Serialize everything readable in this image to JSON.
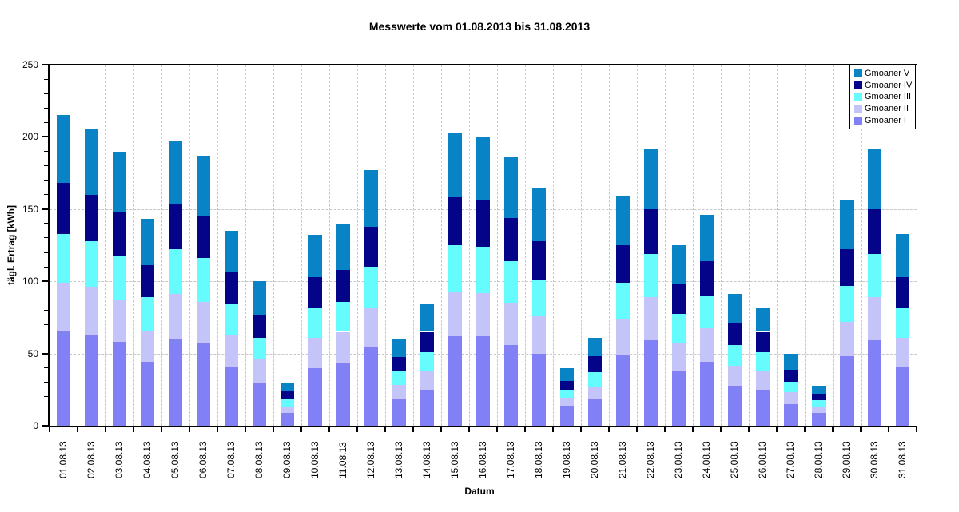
{
  "title": "Messwerte vom 01.08.2013 bis 31.08.2013",
  "colors": {
    "background": "#ffffff",
    "axis": "#000000",
    "grid": "#c8c8c8",
    "gmoaner_1": "#8280f5",
    "gmoaner_2": "#c5c4f9",
    "gmoaner_3": "#66fbfc",
    "gmoaner_4": "#040489",
    "gmoaner_5": "#0883c5"
  },
  "legend": {
    "position": "top-right",
    "items": [
      {
        "label": "Gmoaner V",
        "color": "#0883c5"
      },
      {
        "label": "Gmoaner IV",
        "color": "#040489"
      },
      {
        "label": "Gmoaner III",
        "color": "#66fbfc"
      },
      {
        "label": "Gmoaner II",
        "color": "#c5c4f9"
      },
      {
        "label": "Gmoaner I",
        "color": "#8280f5"
      }
    ]
  },
  "chart_data": {
    "type": "bar",
    "stacked": true,
    "title": "Messwerte vom 01.08.2013 bis 31.08.2013",
    "xlabel": "Datum",
    "ylabel": "tägl. Ertrag [kWh]",
    "ylim": [
      0,
      250
    ],
    "ytick_step": 50,
    "yminor_step": 10,
    "y_tick_labels": [
      "0",
      "50",
      "100",
      "150",
      "200",
      "250"
    ],
    "grid": "dashed",
    "legend_position": "top-right inside plot",
    "categories": [
      "01.08.13",
      "02.08.13",
      "03.08.13",
      "04.08.13",
      "05.08.13",
      "06.08.13",
      "07.08.13",
      "08.08.13",
      "09.08.13",
      "10.08.13",
      "11.08.13",
      "12.08.13",
      "13.08.13",
      "14.08.13",
      "15.08.13",
      "16.08.13",
      "17.08.13",
      "18.08.13",
      "19.08.13",
      "20.08.13",
      "21.08.13",
      "22.08.13",
      "23.08.13",
      "24.08.13",
      "25.08.13",
      "26.08.13",
      "27.08.13",
      "28.08.13",
      "29.08.13",
      "30.08.13",
      "31.08.13"
    ],
    "series": [
      {
        "name": "Gmoaner I",
        "color": "#8280f5",
        "values": [
          65,
          63,
          58,
          44,
          60,
          57,
          41,
          30,
          9,
          40,
          43,
          54,
          19,
          25,
          62,
          62,
          56,
          50,
          14,
          18.5,
          49,
          59,
          38,
          44.5,
          27.5,
          25,
          15,
          9,
          48,
          59,
          41
        ]
      },
      {
        "name": "Gmoaner II",
        "color": "#c5c4f9",
        "values": [
          34,
          33,
          29,
          22,
          31,
          29,
          22,
          16,
          4.5,
          21,
          22,
          28,
          9,
          13,
          31,
          30,
          29,
          26,
          5.5,
          8.5,
          25,
          30,
          19.5,
          23,
          14,
          13,
          8,
          4,
          24,
          30,
          20
        ]
      },
      {
        "name": "Gmoaner III",
        "color": "#66fbfc",
        "values": [
          34,
          32,
          30,
          23,
          31,
          30,
          21,
          15,
          5,
          21,
          21,
          28,
          9.5,
          13,
          32,
          32,
          29,
          25,
          5.5,
          10,
          25,
          30,
          20,
          22.5,
          14.5,
          13,
          7.5,
          4.5,
          25,
          30,
          21
        ]
      },
      {
        "name": "Gmoaner IV",
        "color": "#040489",
        "values": [
          35,
          32,
          31,
          22,
          32,
          29,
          22,
          16,
          5.5,
          21,
          22,
          28,
          10,
          14,
          33,
          32,
          30,
          27,
          6,
          11,
          26,
          31,
          20.5,
          24,
          15,
          14,
          8,
          4.5,
          25,
          31,
          21
        ]
      },
      {
        "name": "Gmoaner V",
        "color": "#0883c5",
        "values": [
          47,
          45,
          42,
          32,
          43,
          42,
          29,
          23,
          6,
          29,
          32,
          39,
          13,
          19,
          45,
          44,
          42,
          37,
          9,
          13,
          34,
          42,
          27,
          32,
          20,
          17,
          11.5,
          5.5,
          34,
          42,
          30
        ]
      }
    ],
    "totals": [
      215,
      205,
      190,
      143,
      197,
      187,
      135,
      100,
      30,
      132,
      140,
      177,
      60.5,
      84,
      203,
      200,
      186,
      165,
      40,
      61,
      159,
      192,
      125,
      146,
      91,
      82,
      50,
      27.5,
      156,
      192,
      133
    ]
  }
}
